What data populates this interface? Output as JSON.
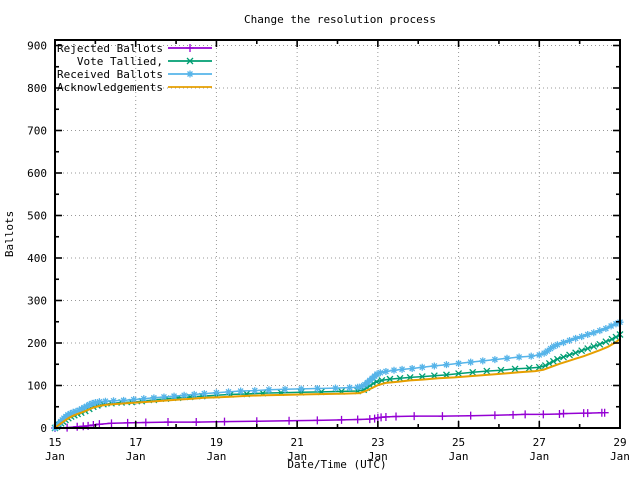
{
  "title": "Change the resolution process",
  "axes": {
    "xlabel": "Date/Time (UTC)",
    "ylabel": "Ballots",
    "y_ticks": [
      0,
      100,
      200,
      300,
      400,
      500,
      600,
      700,
      800,
      900
    ],
    "x_ticks": [
      {
        "day": 15,
        "label_line1": "15",
        "label_line2": "Jan"
      },
      {
        "day": 17,
        "label_line1": "17",
        "label_line2": "Jan"
      },
      {
        "day": 19,
        "label_line1": "19",
        "label_line2": "Jan"
      },
      {
        "day": 21,
        "label_line1": "21",
        "label_line2": "Jan"
      },
      {
        "day": 23,
        "label_line1": "23",
        "label_line2": "Jan"
      },
      {
        "day": 25,
        "label_line1": "25",
        "label_line2": "Jan"
      },
      {
        "day": 27,
        "label_line1": "27",
        "label_line2": "Jan"
      },
      {
        "day": 29,
        "label_line1": "29",
        "label_line2": "Jan"
      }
    ],
    "x_minor_ticks": [
      16,
      18,
      20,
      22,
      24,
      26,
      28
    ],
    "y_minor_ticks": [
      50,
      150,
      250,
      350,
      450,
      550,
      650,
      750,
      850
    ]
  },
  "colors": {
    "background": "#ffffff",
    "border": "#000000",
    "grid": "#999999",
    "rejected": "#9400d3",
    "tallied": "#009e73",
    "received": "#56b4e9",
    "acknowledgements": "#e69f00"
  },
  "legend": {
    "position": "top-left",
    "entries": [
      {
        "label": "Rejected Ballots",
        "color": "#9400d3",
        "marker": "plus"
      },
      {
        "label": "Vote Tallied,",
        "color": "#009e73",
        "marker": "cross"
      },
      {
        "label": "Received Ballots",
        "color": "#56b4e9",
        "marker": "star"
      },
      {
        "label": "Acknowledgements",
        "color": "#e69f00",
        "marker": "none"
      }
    ]
  },
  "chart_data": {
    "type": "line",
    "title": "Change the resolution process",
    "xlabel": "Date/Time (UTC)",
    "ylabel": "Ballots",
    "x_unit": "day of January (UTC)",
    "xlim": [
      15,
      29
    ],
    "ylim": [
      0,
      912
    ],
    "grid": true,
    "legend_position": "top-left",
    "series": [
      {
        "name": "Rejected Ballots",
        "color": "#9400d3",
        "marker": "plus",
        "line_width": 1.5,
        "points": [
          [
            15.0,
            0
          ],
          [
            15.3,
            1
          ],
          [
            15.55,
            3
          ],
          [
            15.7,
            4
          ],
          [
            15.82,
            5
          ],
          [
            15.95,
            7
          ],
          [
            16.1,
            9
          ],
          [
            16.4,
            11
          ],
          [
            16.8,
            12
          ],
          [
            17.25,
            13
          ],
          [
            17.8,
            14
          ],
          [
            18.5,
            14
          ],
          [
            19.2,
            15
          ],
          [
            20.0,
            16
          ],
          [
            20.8,
            17
          ],
          [
            21.5,
            18
          ],
          [
            22.1,
            19
          ],
          [
            22.5,
            20
          ],
          [
            22.8,
            21
          ],
          [
            22.92,
            22
          ],
          [
            23.0,
            24
          ],
          [
            23.08,
            25
          ],
          [
            23.2,
            26
          ],
          [
            23.45,
            27
          ],
          [
            23.9,
            28
          ],
          [
            24.6,
            28
          ],
          [
            25.3,
            29
          ],
          [
            25.9,
            30
          ],
          [
            26.35,
            31
          ],
          [
            26.65,
            32
          ],
          [
            27.1,
            32
          ],
          [
            27.5,
            33
          ],
          [
            27.6,
            34
          ],
          [
            28.1,
            35
          ],
          [
            28.2,
            35
          ],
          [
            28.55,
            36
          ],
          [
            28.62,
            36
          ]
        ]
      },
      {
        "name": "Vote Tallied,",
        "color": "#009e73",
        "marker": "cross",
        "line_width": 1.5,
        "points": [
          [
            15.0,
            0
          ],
          [
            15.05,
            3
          ],
          [
            15.1,
            7
          ],
          [
            15.15,
            11
          ],
          [
            15.2,
            15
          ],
          [
            15.26,
            19
          ],
          [
            15.33,
            23
          ],
          [
            15.4,
            27
          ],
          [
            15.48,
            30
          ],
          [
            15.56,
            33
          ],
          [
            15.65,
            36
          ],
          [
            15.75,
            40
          ],
          [
            15.85,
            45
          ],
          [
            15.95,
            50
          ],
          [
            16.05,
            53
          ],
          [
            16.2,
            56
          ],
          [
            16.4,
            58
          ],
          [
            16.65,
            60
          ],
          [
            16.9,
            61
          ],
          [
            17.15,
            63
          ],
          [
            17.45,
            66
          ],
          [
            17.75,
            69
          ],
          [
            18.05,
            71
          ],
          [
            18.35,
            73
          ],
          [
            18.65,
            75
          ],
          [
            19.0,
            77
          ],
          [
            19.35,
            79
          ],
          [
            19.75,
            80
          ],
          [
            20.15,
            82
          ],
          [
            20.6,
            83
          ],
          [
            21.1,
            84
          ],
          [
            21.6,
            85
          ],
          [
            22.1,
            86
          ],
          [
            22.5,
            87
          ],
          [
            22.65,
            90
          ],
          [
            22.73,
            95
          ],
          [
            22.81,
            100
          ],
          [
            22.89,
            105
          ],
          [
            22.97,
            109
          ],
          [
            23.1,
            112
          ],
          [
            23.3,
            115
          ],
          [
            23.55,
            117
          ],
          [
            23.8,
            119
          ],
          [
            24.1,
            121
          ],
          [
            24.4,
            123
          ],
          [
            24.7,
            125
          ],
          [
            25.0,
            128
          ],
          [
            25.35,
            131
          ],
          [
            25.7,
            134
          ],
          [
            26.05,
            136
          ],
          [
            26.4,
            139
          ],
          [
            26.75,
            141
          ],
          [
            27.0,
            143
          ],
          [
            27.15,
            147
          ],
          [
            27.25,
            152
          ],
          [
            27.35,
            157
          ],
          [
            27.45,
            162
          ],
          [
            27.6,
            167
          ],
          [
            27.75,
            172
          ],
          [
            27.9,
            177
          ],
          [
            28.05,
            182
          ],
          [
            28.2,
            187
          ],
          [
            28.35,
            192
          ],
          [
            28.5,
            197
          ],
          [
            28.65,
            203
          ],
          [
            28.8,
            209
          ],
          [
            28.9,
            214
          ],
          [
            29.0,
            220
          ]
        ]
      },
      {
        "name": "Received Ballots",
        "color": "#56b4e9",
        "marker": "star",
        "line_width": 1.5,
        "points": [
          [
            15.0,
            0
          ],
          [
            15.03,
            3
          ],
          [
            15.06,
            6
          ],
          [
            15.1,
            10
          ],
          [
            15.14,
            15
          ],
          [
            15.18,
            19
          ],
          [
            15.22,
            23
          ],
          [
            15.27,
            27
          ],
          [
            15.32,
            31
          ],
          [
            15.38,
            34
          ],
          [
            15.45,
            37
          ],
          [
            15.52,
            39
          ],
          [
            15.6,
            42
          ],
          [
            15.66,
            45
          ],
          [
            15.72,
            48
          ],
          [
            15.78,
            51
          ],
          [
            15.85,
            55
          ],
          [
            15.92,
            58
          ],
          [
            16.0,
            60
          ],
          [
            16.1,
            62
          ],
          [
            16.25,
            63
          ],
          [
            16.45,
            64
          ],
          [
            16.7,
            65
          ],
          [
            16.95,
            67
          ],
          [
            17.2,
            69
          ],
          [
            17.45,
            71
          ],
          [
            17.7,
            73
          ],
          [
            17.95,
            75
          ],
          [
            18.2,
            77
          ],
          [
            18.45,
            79
          ],
          [
            18.7,
            81
          ],
          [
            19.0,
            83
          ],
          [
            19.3,
            85
          ],
          [
            19.6,
            87
          ],
          [
            19.95,
            88
          ],
          [
            20.3,
            90
          ],
          [
            20.7,
            91
          ],
          [
            21.1,
            92
          ],
          [
            21.5,
            93
          ],
          [
            21.95,
            94
          ],
          [
            22.3,
            95
          ],
          [
            22.5,
            96
          ],
          [
            22.6,
            98
          ],
          [
            22.68,
            102
          ],
          [
            22.74,
            107
          ],
          [
            22.8,
            112
          ],
          [
            22.86,
            117
          ],
          [
            22.92,
            122
          ],
          [
            22.98,
            127
          ],
          [
            23.06,
            130
          ],
          [
            23.2,
            133
          ],
          [
            23.4,
            136
          ],
          [
            23.6,
            138
          ],
          [
            23.85,
            140
          ],
          [
            24.1,
            143
          ],
          [
            24.4,
            146
          ],
          [
            24.7,
            149
          ],
          [
            25.0,
            152
          ],
          [
            25.3,
            155
          ],
          [
            25.6,
            158
          ],
          [
            25.9,
            161
          ],
          [
            26.2,
            164
          ],
          [
            26.5,
            167
          ],
          [
            26.8,
            169
          ],
          [
            27.0,
            172
          ],
          [
            27.12,
            176
          ],
          [
            27.2,
            181
          ],
          [
            27.28,
            187
          ],
          [
            27.36,
            192
          ],
          [
            27.45,
            196
          ],
          [
            27.6,
            201
          ],
          [
            27.75,
            206
          ],
          [
            27.9,
            211
          ],
          [
            28.05,
            215
          ],
          [
            28.2,
            220
          ],
          [
            28.35,
            224
          ],
          [
            28.5,
            229
          ],
          [
            28.65,
            234
          ],
          [
            28.78,
            240
          ],
          [
            28.9,
            245
          ],
          [
            29.0,
            249
          ]
        ]
      },
      {
        "name": "Acknowledgements",
        "color": "#e69f00",
        "marker": "none",
        "line_width": 2,
        "points": [
          [
            15.0,
            0
          ],
          [
            15.08,
            6
          ],
          [
            15.16,
            12
          ],
          [
            15.25,
            18
          ],
          [
            15.35,
            24
          ],
          [
            15.45,
            29
          ],
          [
            15.55,
            33
          ],
          [
            15.65,
            36
          ],
          [
            15.75,
            40
          ],
          [
            15.85,
            44
          ],
          [
            15.95,
            48
          ],
          [
            16.1,
            52
          ],
          [
            16.3,
            55
          ],
          [
            16.6,
            57
          ],
          [
            16.9,
            59
          ],
          [
            17.2,
            61
          ],
          [
            17.5,
            63
          ],
          [
            17.8,
            65
          ],
          [
            18.1,
            67
          ],
          [
            18.4,
            69
          ],
          [
            18.7,
            71
          ],
          [
            19.0,
            72
          ],
          [
            19.4,
            74
          ],
          [
            19.8,
            76
          ],
          [
            20.2,
            77
          ],
          [
            20.7,
            78
          ],
          [
            21.2,
            79
          ],
          [
            21.7,
            80
          ],
          [
            22.2,
            81
          ],
          [
            22.55,
            82
          ],
          [
            22.7,
            87
          ],
          [
            22.85,
            94
          ],
          [
            23.0,
            101
          ],
          [
            23.2,
            106
          ],
          [
            23.5,
            109
          ],
          [
            23.8,
            112
          ],
          [
            24.1,
            114
          ],
          [
            24.5,
            117
          ],
          [
            24.9,
            119
          ],
          [
            25.3,
            122
          ],
          [
            25.7,
            125
          ],
          [
            26.1,
            128
          ],
          [
            26.5,
            131
          ],
          [
            26.9,
            134
          ],
          [
            27.1,
            137
          ],
          [
            27.3,
            144
          ],
          [
            27.5,
            151
          ],
          [
            27.7,
            157
          ],
          [
            27.9,
            163
          ],
          [
            28.1,
            169
          ],
          [
            28.3,
            176
          ],
          [
            28.5,
            183
          ],
          [
            28.7,
            191
          ],
          [
            28.85,
            199
          ],
          [
            29.0,
            209
          ]
        ]
      }
    ]
  }
}
